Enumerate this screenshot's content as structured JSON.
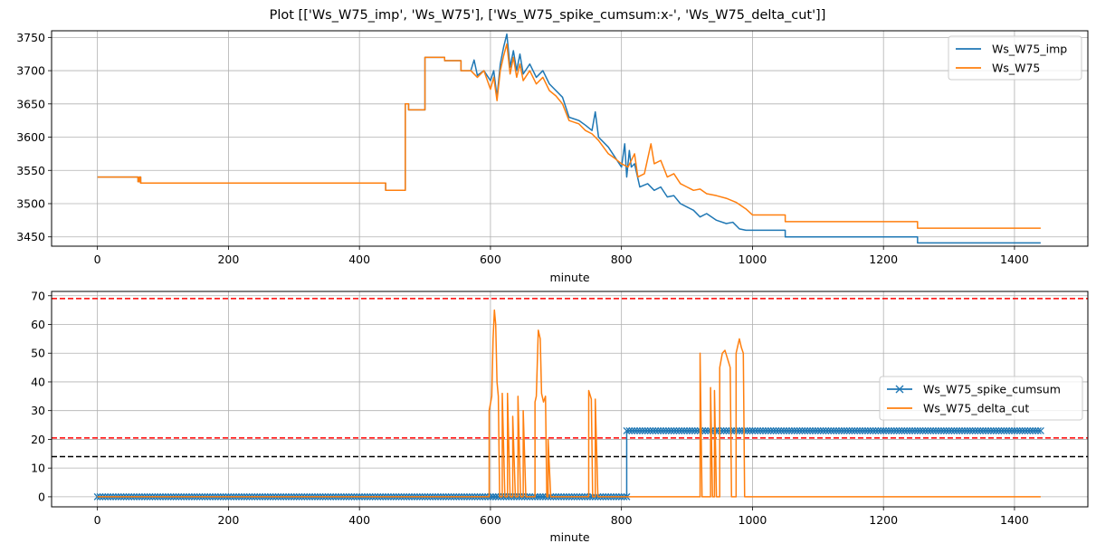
{
  "figure": {
    "title": "Plot [['Ws_W75_imp', 'Ws_W75'], ['Ws_W75_spike_cumsum:x-', 'Ws_W75_delta_cut']]"
  },
  "colors": {
    "blue": "#1f77b4",
    "orange": "#ff7f0e",
    "red": "#ff0000",
    "black": "#000000",
    "grid": "#b0b0b0"
  },
  "chart_data": [
    {
      "type": "line",
      "xlabel": "minute",
      "ylabel": "",
      "xlim": [
        -70,
        1512
      ],
      "ylim": [
        3436,
        3760
      ],
      "xticks": [
        0,
        200,
        400,
        600,
        800,
        1000,
        1200,
        1400
      ],
      "yticks": [
        3450,
        3500,
        3550,
        3600,
        3650,
        3700,
        3750
      ],
      "grid": true,
      "legend_position": "top-right",
      "series": [
        {
          "name": "Ws_W75_imp",
          "color": "#1f77b4",
          "style": "step",
          "points": [
            [
              0,
              3540
            ],
            [
              62,
              3540
            ],
            [
              62,
              3533
            ],
            [
              64,
              3533
            ],
            [
              64,
              3540
            ],
            [
              66,
              3540
            ],
            [
              66,
              3531
            ],
            [
              440,
              3531
            ],
            [
              440,
              3520
            ],
            [
              470,
              3520
            ],
            [
              470,
              3650
            ],
            [
              475,
              3650
            ],
            [
              475,
              3641
            ],
            [
              500,
              3641
            ],
            [
              500,
              3720
            ],
            [
              530,
              3720
            ],
            [
              530,
              3715
            ],
            [
              555,
              3715
            ],
            [
              555,
              3700
            ],
            [
              570,
              3700
            ],
            [
              575,
              3716
            ],
            [
              580,
              3693
            ],
            [
              590,
              3700
            ],
            [
              600,
              3685
            ],
            [
              605,
              3700
            ],
            [
              610,
              3660
            ],
            [
              615,
              3710
            ],
            [
              620,
              3735
            ],
            [
              625,
              3755
            ],
            [
              630,
              3705
            ],
            [
              635,
              3730
            ],
            [
              640,
              3700
            ],
            [
              645,
              3725
            ],
            [
              650,
              3695
            ],
            [
              660,
              3710
            ],
            [
              670,
              3690
            ],
            [
              680,
              3700
            ],
            [
              690,
              3680
            ],
            [
              700,
              3670
            ],
            [
              710,
              3660
            ],
            [
              720,
              3630
            ],
            [
              735,
              3625
            ],
            [
              745,
              3618
            ],
            [
              755,
              3610
            ],
            [
              760,
              3638
            ],
            [
              765,
              3600
            ],
            [
              780,
              3585
            ],
            [
              790,
              3570
            ],
            [
              800,
              3555
            ],
            [
              805,
              3590
            ],
            [
              808,
              3540
            ],
            [
              812,
              3580
            ],
            [
              815,
              3555
            ],
            [
              820,
              3560
            ],
            [
              828,
              3525
            ],
            [
              840,
              3530
            ],
            [
              850,
              3520
            ],
            [
              860,
              3525
            ],
            [
              870,
              3510
            ],
            [
              880,
              3512
            ],
            [
              890,
              3500
            ],
            [
              900,
              3495
            ],
            [
              910,
              3490
            ],
            [
              920,
              3480
            ],
            [
              930,
              3485
            ],
            [
              945,
              3475
            ],
            [
              960,
              3470
            ],
            [
              970,
              3472
            ],
            [
              980,
              3462
            ],
            [
              990,
              3460
            ],
            [
              1000,
              3460
            ],
            [
              1050,
              3460
            ],
            [
              1050,
              3450
            ],
            [
              1252,
              3450
            ],
            [
              1252,
              3441
            ],
            [
              1440,
              3441
            ]
          ]
        },
        {
          "name": "Ws_W75",
          "color": "#ff7f0e",
          "style": "step",
          "points": [
            [
              0,
              3540
            ],
            [
              62,
              3540
            ],
            [
              62,
              3533
            ],
            [
              64,
              3533
            ],
            [
              64,
              3540
            ],
            [
              66,
              3540
            ],
            [
              66,
              3531
            ],
            [
              440,
              3531
            ],
            [
              440,
              3520
            ],
            [
              470,
              3520
            ],
            [
              470,
              3650
            ],
            [
              475,
              3650
            ],
            [
              475,
              3641
            ],
            [
              500,
              3641
            ],
            [
              500,
              3720
            ],
            [
              530,
              3720
            ],
            [
              530,
              3715
            ],
            [
              555,
              3715
            ],
            [
              555,
              3700
            ],
            [
              570,
              3700
            ],
            [
              580,
              3690
            ],
            [
              590,
              3700
            ],
            [
              600,
              3672
            ],
            [
              605,
              3690
            ],
            [
              610,
              3655
            ],
            [
              615,
              3700
            ],
            [
              620,
              3722
            ],
            [
              625,
              3740
            ],
            [
              630,
              3695
            ],
            [
              635,
              3720
            ],
            [
              640,
              3690
            ],
            [
              645,
              3710
            ],
            [
              650,
              3685
            ],
            [
              660,
              3700
            ],
            [
              670,
              3680
            ],
            [
              680,
              3690
            ],
            [
              690,
              3670
            ],
            [
              700,
              3662
            ],
            [
              710,
              3650
            ],
            [
              720,
              3625
            ],
            [
              735,
              3620
            ],
            [
              745,
              3610
            ],
            [
              755,
              3605
            ],
            [
              765,
              3595
            ],
            [
              780,
              3575
            ],
            [
              790,
              3568
            ],
            [
              800,
              3560
            ],
            [
              810,
              3555
            ],
            [
              820,
              3575
            ],
            [
              825,
              3540
            ],
            [
              835,
              3545
            ],
            [
              845,
              3590
            ],
            [
              850,
              3560
            ],
            [
              860,
              3565
            ],
            [
              870,
              3540
            ],
            [
              880,
              3545
            ],
            [
              890,
              3530
            ],
            [
              900,
              3525
            ],
            [
              910,
              3520
            ],
            [
              920,
              3522
            ],
            [
              930,
              3515
            ],
            [
              945,
              3512
            ],
            [
              960,
              3508
            ],
            [
              975,
              3502
            ],
            [
              990,
              3492
            ],
            [
              1000,
              3483
            ],
            [
              1050,
              3483
            ],
            [
              1050,
              3473
            ],
            [
              1252,
              3473
            ],
            [
              1252,
              3463
            ],
            [
              1440,
              3463
            ]
          ]
        }
      ]
    },
    {
      "type": "line",
      "xlabel": "minute",
      "ylabel": "",
      "xlim": [
        -70,
        1512
      ],
      "ylim": [
        -3.5,
        71.5
      ],
      "xticks": [
        0,
        200,
        400,
        600,
        800,
        1000,
        1200,
        1400
      ],
      "yticks": [
        0,
        10,
        20,
        30,
        40,
        50,
        60,
        70
      ],
      "grid": true,
      "legend_position": "center-right",
      "reference_lines": [
        {
          "y": 69,
          "color": "#ff0000",
          "style": "dashed"
        },
        {
          "y": 20.5,
          "color": "#ff0000",
          "style": "dashed"
        },
        {
          "y": 14,
          "color": "#000000",
          "style": "dashed"
        }
      ],
      "series": [
        {
          "name": "Ws_W75_spike_cumsum",
          "color": "#1f77b4",
          "style": "line-x-markers",
          "points": [
            [
              0,
              0
            ],
            [
              808,
              0
            ],
            [
              808,
              23
            ],
            [
              1440,
              23
            ]
          ],
          "marker_segments": [
            [
              0,
              808,
              0
            ],
            [
              808,
              1440,
              23
            ]
          ]
        },
        {
          "name": "Ws_W75_delta_cut",
          "color": "#ff7f0e",
          "style": "step",
          "points": [
            [
              0,
              0
            ],
            [
              598,
              0
            ],
            [
              598,
              30
            ],
            [
              602,
              35
            ],
            [
              604,
              55
            ],
            [
              606,
              65
            ],
            [
              608,
              60
            ],
            [
              610,
              40
            ],
            [
              612,
              35
            ],
            [
              614,
              0
            ],
            [
              618,
              0
            ],
            [
              618,
              36
            ],
            [
              622,
              0
            ],
            [
              626,
              0
            ],
            [
              626,
              36
            ],
            [
              630,
              0
            ],
            [
              634,
              0
            ],
            [
              634,
              28
            ],
            [
              638,
              0
            ],
            [
              642,
              0
            ],
            [
              642,
              35
            ],
            [
              646,
              0
            ],
            [
              650,
              0
            ],
            [
              650,
              30
            ],
            [
              654,
              0
            ],
            [
              668,
              0
            ],
            [
              668,
              33
            ],
            [
              670,
              35
            ],
            [
              673,
              58
            ],
            [
              676,
              55
            ],
            [
              678,
              36
            ],
            [
              681,
              33
            ],
            [
              684,
              35
            ],
            [
              686,
              0
            ],
            [
              688,
              0
            ],
            [
              688,
              20
            ],
            [
              692,
              0
            ],
            [
              750,
              0
            ],
            [
              750,
              37
            ],
            [
              754,
              34
            ],
            [
              756,
              0
            ],
            [
              760,
              0
            ],
            [
              760,
              34
            ],
            [
              764,
              0
            ],
            [
              920,
              0
            ],
            [
              920,
              50
            ],
            [
              923,
              0
            ],
            [
              936,
              0
            ],
            [
              936,
              38
            ],
            [
              939,
              0
            ],
            [
              942,
              0
            ],
            [
              942,
              37
            ],
            [
              945,
              0
            ],
            [
              950,
              0
            ],
            [
              950,
              45
            ],
            [
              954,
              50
            ],
            [
              958,
              51
            ],
            [
              962,
              48
            ],
            [
              966,
              45
            ],
            [
              968,
              0
            ],
            [
              975,
              0
            ],
            [
              975,
              50
            ],
            [
              980,
              55
            ],
            [
              983,
              52
            ],
            [
              986,
              50
            ],
            [
              988,
              0
            ],
            [
              1440,
              0
            ]
          ]
        }
      ]
    }
  ]
}
